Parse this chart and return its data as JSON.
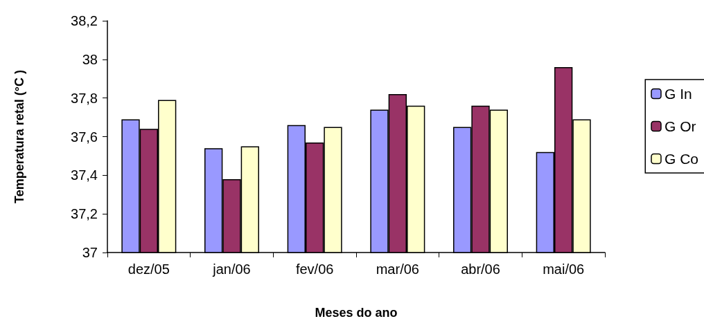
{
  "chart_data": {
    "type": "bar",
    "xlabel": "Meses do ano",
    "ylabel": "Temperatura retal (°C )",
    "categories": [
      "dez/05",
      "jan/06",
      "fev/06",
      "mar/06",
      "abr/06",
      "mai/06"
    ],
    "series": [
      {
        "name": "G In",
        "color": "#9999ff",
        "values": [
          37.69,
          37.54,
          37.66,
          37.74,
          37.65,
          37.52
        ]
      },
      {
        "name": "G Or",
        "color": "#993366",
        "values": [
          37.64,
          37.38,
          37.57,
          37.82,
          37.76,
          37.96
        ]
      },
      {
        "name": "G Co",
        "color": "#ffffcc",
        "values": [
          37.79,
          37.55,
          37.65,
          37.76,
          37.74,
          37.69
        ]
      }
    ],
    "ylim": [
      37,
      38.2
    ],
    "yticks": [
      {
        "value": 37,
        "label": "37"
      },
      {
        "value": 37.2,
        "label": "37,2"
      },
      {
        "value": 37.4,
        "label": "37,4"
      },
      {
        "value": 37.6,
        "label": "37,6"
      },
      {
        "value": 37.8,
        "label": "37,8"
      },
      {
        "value": 38,
        "label": "38"
      },
      {
        "value": 38.2,
        "label": "38,2"
      }
    ],
    "grid": false,
    "legend": "right"
  }
}
